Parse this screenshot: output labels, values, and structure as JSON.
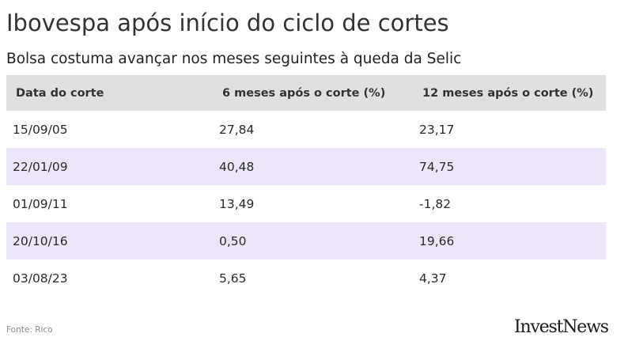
{
  "title": "Ibovespa após início do ciclo de cortes",
  "subtitle": "Bolsa costuma avançar nos meses seguintes à queda da Selic",
  "chart_data": {
    "type": "table",
    "columns": [
      "Data do corte",
      "6 meses após o corte (%)",
      "12 meses após o corte (%)"
    ],
    "rows": [
      [
        "15/09/05",
        "27,84",
        "23,17"
      ],
      [
        "22/01/09",
        "40,48",
        "74,75"
      ],
      [
        "01/09/11",
        "13,49",
        "-1,82"
      ],
      [
        "20/10/16",
        "0,50",
        "19,66"
      ],
      [
        "03/08/23",
        "5,65",
        "4,37"
      ]
    ]
  },
  "source": "Fonte: Rico",
  "logo": "InvestNews",
  "colors": {
    "header_bg": "#e0e0e0",
    "alt_row_bg": "#ede6fa"
  }
}
